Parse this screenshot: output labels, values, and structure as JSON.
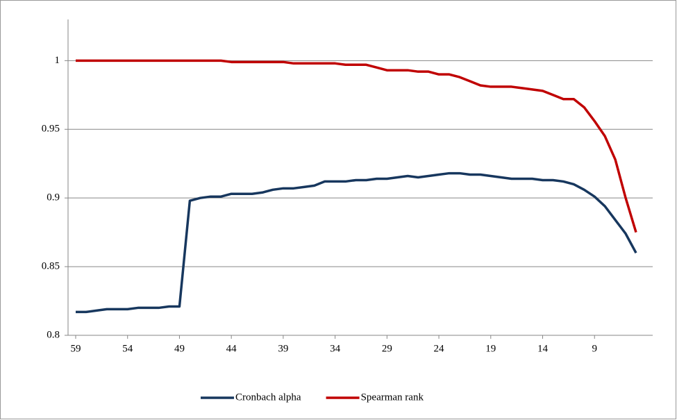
{
  "chart_data": {
    "type": "line",
    "categories": [
      59,
      null,
      null,
      null,
      null,
      54,
      null,
      null,
      null,
      null,
      49,
      null,
      null,
      null,
      null,
      44,
      null,
      null,
      null,
      null,
      39,
      null,
      null,
      null,
      null,
      34,
      null,
      null,
      null,
      null,
      29,
      null,
      null,
      null,
      null,
      24,
      null,
      null,
      null,
      null,
      19,
      null,
      null,
      null,
      null,
      14,
      null,
      null,
      null,
      null,
      9,
      null,
      null,
      null,
      null
    ],
    "series": [
      {
        "name": "Cronbach alpha",
        "color": "#17375e",
        "values": [
          0.817,
          0.817,
          0.818,
          0.819,
          0.819,
          0.819,
          0.82,
          0.82,
          0.82,
          0.821,
          0.821,
          0.898,
          0.9,
          0.901,
          0.901,
          0.903,
          0.903,
          0.903,
          0.904,
          0.906,
          0.907,
          0.907,
          0.908,
          0.909,
          0.912,
          0.912,
          0.912,
          0.913,
          0.913,
          0.914,
          0.914,
          0.915,
          0.916,
          0.915,
          0.916,
          0.917,
          0.918,
          0.918,
          0.917,
          0.917,
          0.916,
          0.915,
          0.914,
          0.914,
          0.914,
          0.913,
          0.913,
          0.912,
          0.91,
          0.906,
          0.901,
          0.894,
          0.884,
          0.874,
          0.86
        ]
      },
      {
        "name": "Spearman rank",
        "color": "#c00000",
        "values": [
          1,
          1,
          1,
          1,
          1,
          1,
          1,
          1,
          1,
          1,
          1,
          1,
          1,
          1,
          1,
          0.999,
          0.999,
          0.999,
          0.999,
          0.999,
          0.999,
          0.998,
          0.998,
          0.998,
          0.998,
          0.998,
          0.997,
          0.997,
          0.997,
          0.995,
          0.993,
          0.993,
          0.993,
          0.992,
          0.992,
          0.99,
          0.99,
          0.988,
          0.985,
          0.982,
          0.981,
          0.981,
          0.981,
          0.98,
          0.979,
          0.978,
          0.975,
          0.972,
          0.972,
          0.966,
          0.956,
          0.945,
          0.928,
          0.9,
          0.875
        ]
      }
    ],
    "ylim": [
      0.8,
      1.03
    ],
    "yticks": [
      0.8,
      0.85,
      0.9,
      0.95,
      1
    ],
    "grid": true,
    "legend": "bottom"
  }
}
